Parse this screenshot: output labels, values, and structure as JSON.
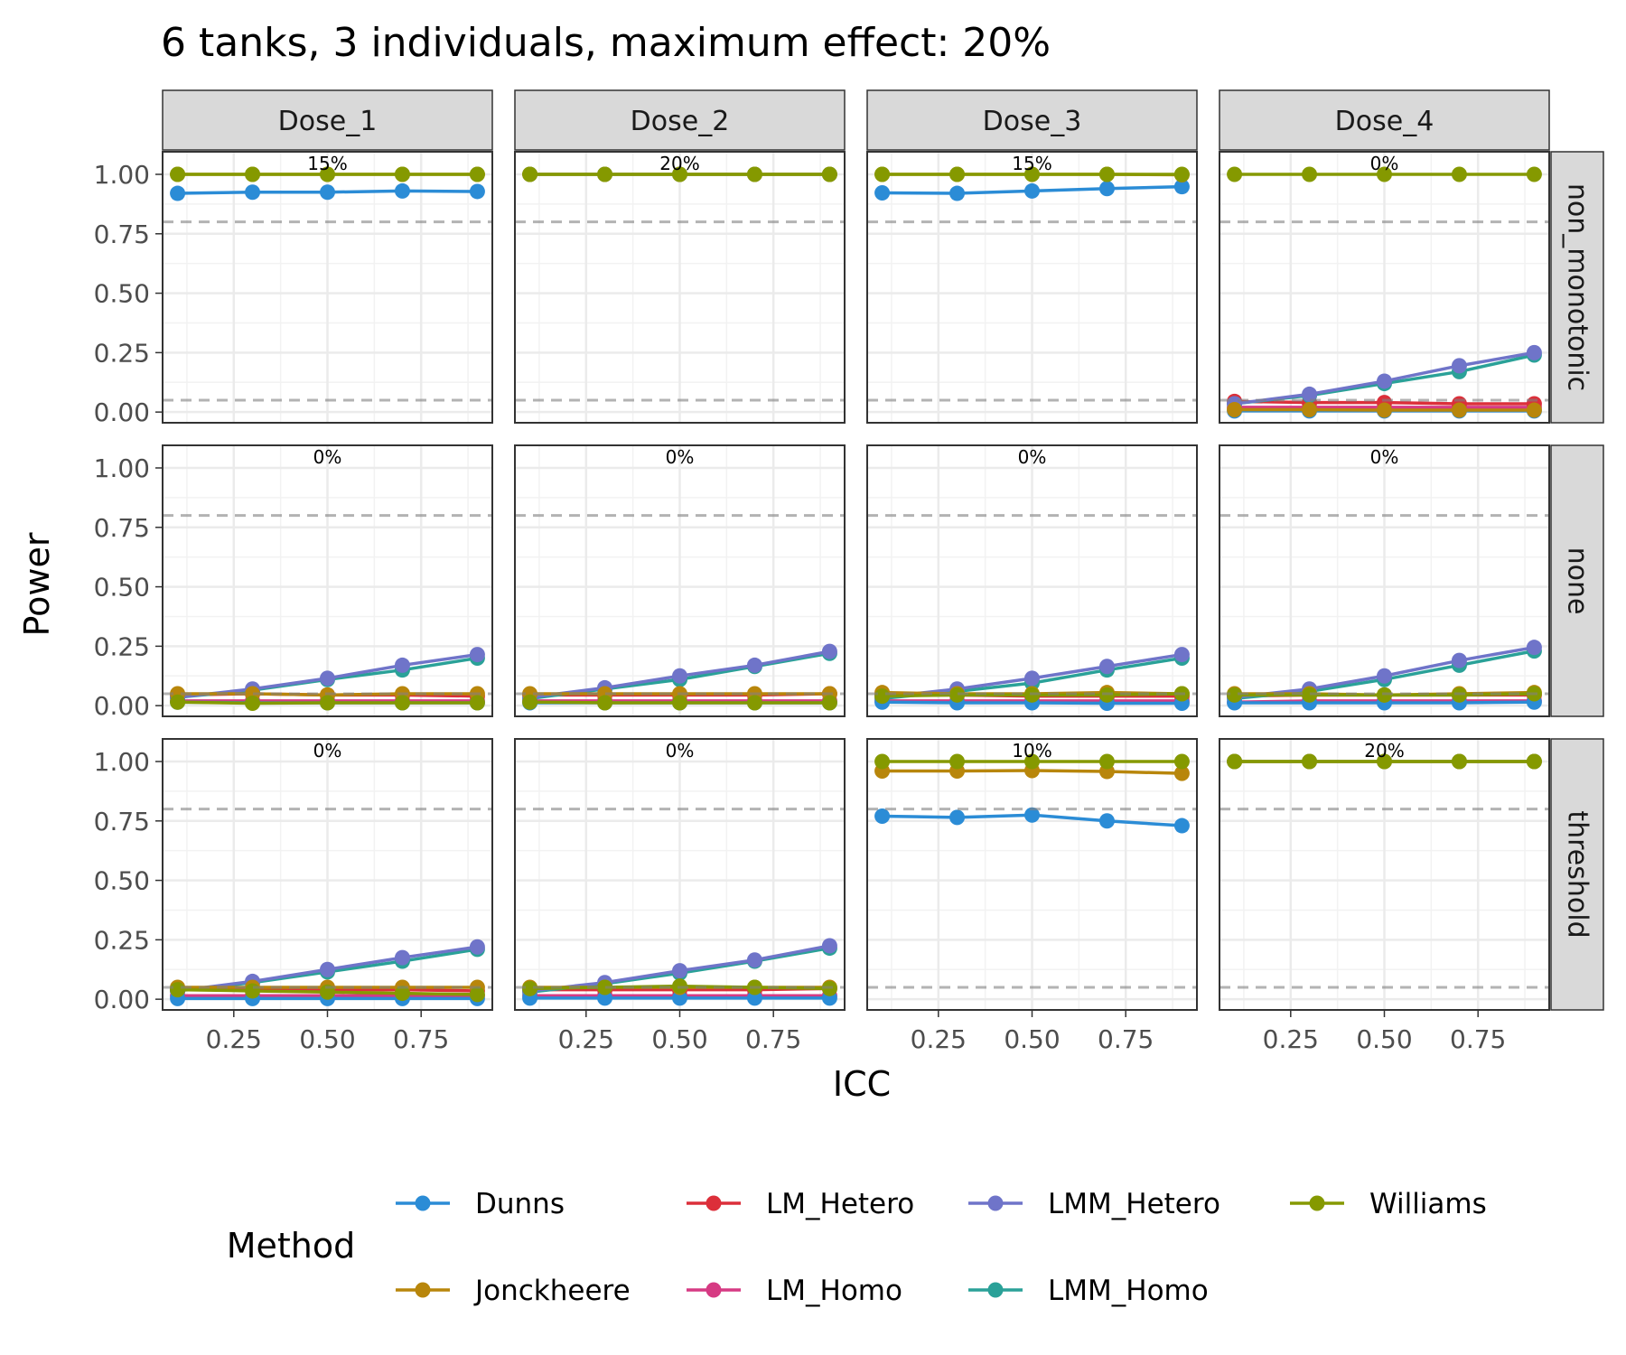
{
  "chart_data": {
    "type": "line",
    "title": "6 tanks, 3 individuals, maximum effect: 20%",
    "xlabel": "ICC",
    "ylabel": "Power",
    "xlim": [
      0.06,
      0.94
    ],
    "ylim": [
      -0.045,
      1.095
    ],
    "x": [
      0.1,
      0.3,
      0.5,
      0.7,
      0.9
    ],
    "x_ticks": [
      0.25,
      0.5,
      0.75
    ],
    "x_tick_labels": [
      "0.25",
      "0.50",
      "0.75"
    ],
    "y_ticks": [
      0,
      0.25,
      0.5,
      0.75,
      1
    ],
    "y_tick_labels": [
      "0.00",
      "0.25",
      "0.50",
      "0.75",
      "1.00"
    ],
    "reference_lines": [
      0.05,
      0.8
    ],
    "columns": [
      "Dose_1",
      "Dose_2",
      "Dose_3",
      "Dose_4"
    ],
    "rows": [
      "non_monotonic",
      "none",
      "threshold"
    ],
    "legend": {
      "title": "Method",
      "position": "bottom",
      "entries": [
        "Dunns",
        "LM_Hetero",
        "LMM_Hetero",
        "Williams",
        "Jonckheere",
        "LM_Homo",
        "LMM_Homo"
      ]
    },
    "colors": {
      "Dunns": "#2b8cd6",
      "Jonckheere": "#b8860b",
      "LM_Hetero": "#dc2f3a",
      "LM_Homo": "#d63a83",
      "LMM_Hetero": "#6f74c9",
      "LMM_Homo": "#2aa198",
      "Williams": "#859900"
    },
    "series_order": [
      "LM_Homo",
      "LM_Hetero",
      "LMM_Homo",
      "LMM_Hetero",
      "Dunns",
      "Jonckheere",
      "Williams"
    ],
    "panels": [
      {
        "row": "non_monotonic",
        "col": "Dose_1",
        "label": "15%",
        "series": {
          "Dunns": [
            0.92,
            0.925,
            0.925,
            0.93,
            0.928
          ],
          "Jonckheere": [
            1,
            1,
            1,
            1,
            1
          ],
          "Williams": [
            1,
            1,
            1,
            1,
            1
          ]
        }
      },
      {
        "row": "non_monotonic",
        "col": "Dose_2",
        "label": "20%",
        "series": {
          "Dunns": [
            1,
            1,
            1,
            1,
            1
          ],
          "Jonckheere": [
            1,
            1,
            1,
            1,
            1
          ],
          "Williams": [
            1,
            1,
            1,
            1,
            1
          ]
        }
      },
      {
        "row": "non_monotonic",
        "col": "Dose_3",
        "label": "15%",
        "series": {
          "Dunns": [
            0.922,
            0.92,
            0.93,
            0.94,
            0.948
          ],
          "Jonckheere": [
            1,
            1,
            1,
            1,
            0.998
          ],
          "Williams": [
            1,
            1,
            1,
            1,
            1
          ]
        }
      },
      {
        "row": "non_monotonic",
        "col": "Dose_4",
        "label": "0%",
        "series": {
          "LM_Homo": [
            0.02,
            0.02,
            0.02,
            0.02,
            0.02
          ],
          "LM_Hetero": [
            0.045,
            0.04,
            0.04,
            0.035,
            0.035
          ],
          "LMM_Homo": [
            0.035,
            0.07,
            0.12,
            0.17,
            0.24
          ],
          "LMM_Hetero": [
            0.035,
            0.075,
            0.13,
            0.195,
            0.25
          ],
          "Dunns": [
            0.005,
            0.005,
            0.005,
            0.005,
            0.005
          ],
          "Jonckheere": [
            0.01,
            0.01,
            0.008,
            0.008,
            0.008
          ],
          "Williams": [
            1,
            1,
            1,
            1,
            1
          ]
        }
      },
      {
        "row": "none",
        "col": "Dose_1",
        "label": "0%",
        "series": {
          "LM_Homo": [
            0.02,
            0.02,
            0.02,
            0.02,
            0.02
          ],
          "LM_Hetero": [
            0.045,
            0.05,
            0.045,
            0.045,
            0.04
          ],
          "LMM_Homo": [
            0.035,
            0.065,
            0.11,
            0.15,
            0.2
          ],
          "LMM_Hetero": [
            0.035,
            0.07,
            0.115,
            0.17,
            0.215
          ],
          "Dunns": [
            0.015,
            0.012,
            0.012,
            0.012,
            0.012
          ],
          "Jonckheere": [
            0.05,
            0.05,
            0.045,
            0.05,
            0.05
          ],
          "Williams": [
            0.015,
            0.01,
            0.012,
            0.012,
            0.012
          ]
        }
      },
      {
        "row": "none",
        "col": "Dose_2",
        "label": "0%",
        "series": {
          "LM_Homo": [
            0.02,
            0.02,
            0.02,
            0.02,
            0.02
          ],
          "LM_Hetero": [
            0.045,
            0.045,
            0.045,
            0.045,
            0.05
          ],
          "LMM_Homo": [
            0.03,
            0.07,
            0.11,
            0.165,
            0.22
          ],
          "LMM_Hetero": [
            0.035,
            0.075,
            0.125,
            0.17,
            0.228
          ],
          "Dunns": [
            0.012,
            0.012,
            0.012,
            0.012,
            0.012
          ],
          "Jonckheere": [
            0.05,
            0.05,
            0.05,
            0.05,
            0.05
          ],
          "Williams": [
            0.015,
            0.012,
            0.012,
            0.012,
            0.012
          ]
        }
      },
      {
        "row": "none",
        "col": "Dose_3",
        "label": "0%",
        "series": {
          "LM_Homo": [
            0.02,
            0.02,
            0.02,
            0.02,
            0.02
          ],
          "LM_Hetero": [
            0.045,
            0.045,
            0.04,
            0.04,
            0.04
          ],
          "LMM_Homo": [
            0.03,
            0.06,
            0.095,
            0.15,
            0.2
          ],
          "LMM_Hetero": [
            0.035,
            0.07,
            0.115,
            0.165,
            0.215
          ],
          "Dunns": [
            0.015,
            0.012,
            0.012,
            0.01,
            0.01
          ],
          "Jonckheere": [
            0.055,
            0.05,
            0.05,
            0.055,
            0.05
          ],
          "Williams": [
            0.04,
            0.045,
            0.045,
            0.045,
            0.05
          ]
        }
      },
      {
        "row": "none",
        "col": "Dose_4",
        "label": "0%",
        "series": {
          "LM_Homo": [
            0.015,
            0.02,
            0.02,
            0.02,
            0.02
          ],
          "LM_Hetero": [
            0.04,
            0.045,
            0.045,
            0.045,
            0.045
          ],
          "LMM_Homo": [
            0.03,
            0.06,
            0.11,
            0.17,
            0.23
          ],
          "LMM_Hetero": [
            0.035,
            0.07,
            0.125,
            0.19,
            0.245
          ],
          "Dunns": [
            0.012,
            0.012,
            0.012,
            0.012,
            0.015
          ],
          "Jonckheere": [
            0.05,
            0.05,
            0.045,
            0.05,
            0.055
          ],
          "Williams": [
            0.045,
            0.045,
            0.045,
            0.045,
            0.05
          ]
        }
      },
      {
        "row": "threshold",
        "col": "Dose_1",
        "label": "0%",
        "series": {
          "LM_Homo": [
            0.015,
            0.015,
            0.015,
            0.015,
            0.015
          ],
          "LM_Hetero": [
            0.045,
            0.045,
            0.04,
            0.04,
            0.035
          ],
          "LMM_Homo": [
            0.035,
            0.07,
            0.115,
            0.16,
            0.21
          ],
          "LMM_Hetero": [
            0.035,
            0.075,
            0.125,
            0.175,
            0.22
          ],
          "Dunns": [
            0.003,
            0.003,
            0.003,
            0.003,
            0.003
          ],
          "Jonckheere": [
            0.05,
            0.05,
            0.05,
            0.05,
            0.05
          ],
          "Williams": [
            0.04,
            0.035,
            0.03,
            0.025,
            0.02
          ]
        }
      },
      {
        "row": "threshold",
        "col": "Dose_2",
        "label": "0%",
        "series": {
          "LM_Homo": [
            0.015,
            0.015,
            0.015,
            0.015,
            0.015
          ],
          "LM_Hetero": [
            0.04,
            0.04,
            0.04,
            0.04,
            0.045
          ],
          "LMM_Homo": [
            0.03,
            0.065,
            0.11,
            0.16,
            0.215
          ],
          "LMM_Hetero": [
            0.035,
            0.07,
            0.12,
            0.165,
            0.225
          ],
          "Dunns": [
            0.005,
            0.005,
            0.005,
            0.005,
            0.005
          ],
          "Jonckheere": [
            0.05,
            0.05,
            0.05,
            0.05,
            0.05
          ],
          "Williams": [
            0.045,
            0.05,
            0.055,
            0.05,
            0.045
          ]
        }
      },
      {
        "row": "threshold",
        "col": "Dose_3",
        "label": "10%",
        "series": {
          "Dunns": [
            0.77,
            0.765,
            0.775,
            0.75,
            0.73
          ],
          "Jonckheere": [
            0.96,
            0.96,
            0.962,
            0.958,
            0.95
          ],
          "Williams": [
            1,
            1,
            1,
            1,
            1
          ]
        }
      },
      {
        "row": "threshold",
        "col": "Dose_4",
        "label": "20%",
        "series": {
          "Dunns": [
            1,
            1,
            1,
            1,
            1
          ],
          "Jonckheere": [
            1,
            1,
            1,
            1,
            1
          ],
          "Williams": [
            1,
            1,
            1,
            1,
            1
          ]
        }
      }
    ]
  }
}
